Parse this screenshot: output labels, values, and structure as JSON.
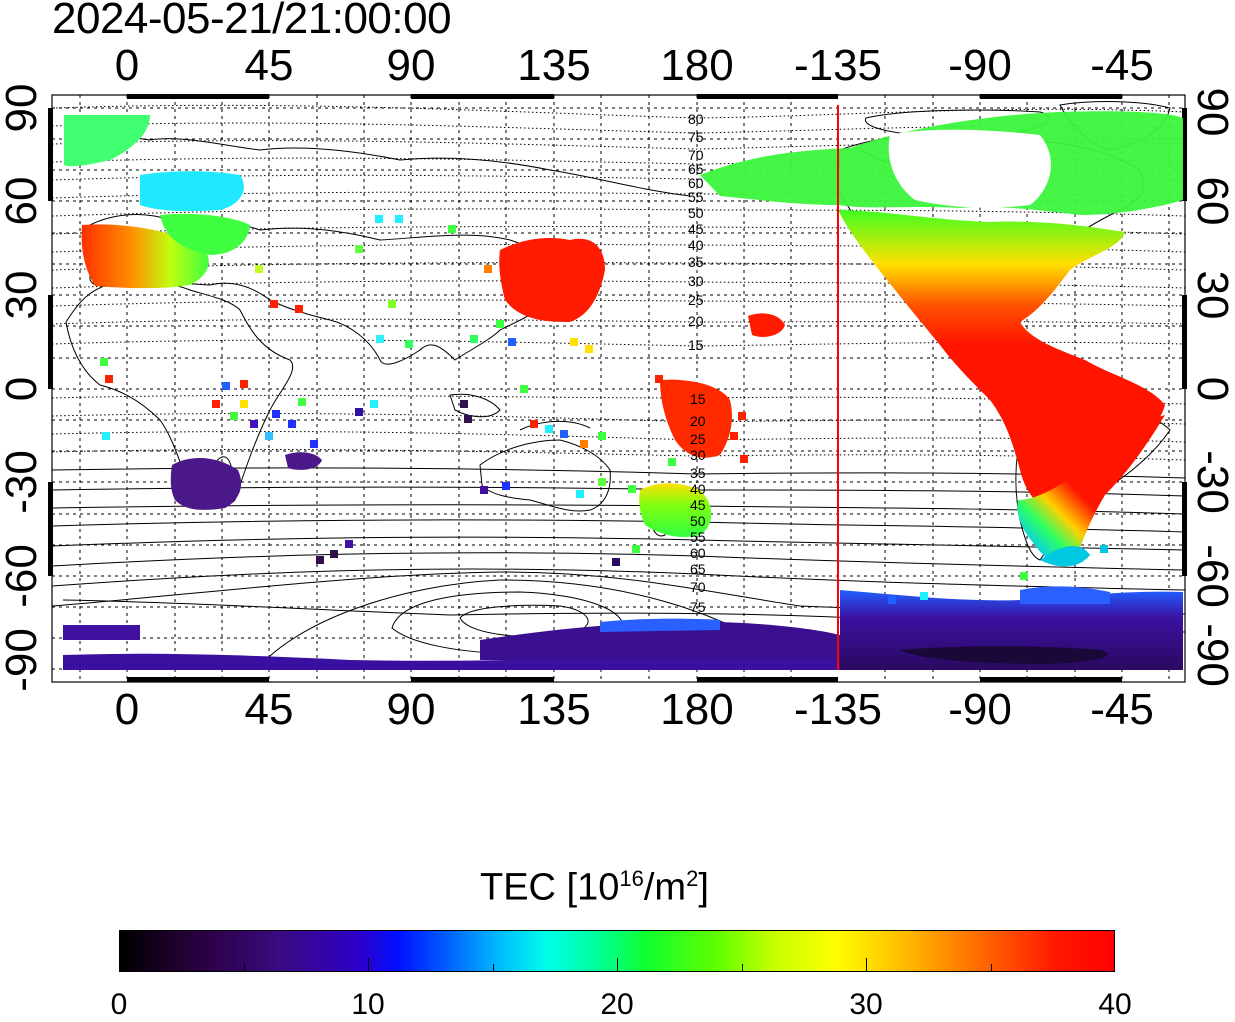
{
  "title": "2024-05-21/21:00:00",
  "x_axis_labels": [
    "0",
    "45",
    "90",
    "135",
    "180",
    "-135",
    "-90",
    "-45"
  ],
  "y_axis_labels_left": [
    "90",
    "60",
    "30",
    "0",
    "-30",
    "-60",
    "-90"
  ],
  "y_axis_labels_right": [
    "90",
    "60",
    "30",
    "0",
    "-30",
    "-60",
    "-90"
  ],
  "contour_labels_north": [
    "80",
    "75",
    "70",
    "65",
    "60",
    "55",
    "50",
    "45",
    "40",
    "35",
    "30",
    "25",
    "20",
    "15"
  ],
  "contour_labels_south": [
    "15",
    "20",
    "25",
    "30",
    "35",
    "40",
    "45",
    "50",
    "55",
    "60",
    "65",
    "70",
    "75"
  ],
  "colorbar": {
    "title_prefix": "TEC  [10",
    "title_sup1": "16",
    "title_mid": "/m",
    "title_sup2": "2",
    "title_suffix": "]",
    "tick_labels": [
      "0",
      "10",
      "20",
      "30",
      "40"
    ],
    "min": 0,
    "max": 40
  },
  "terminator_longitude": -135,
  "colors": {
    "terminator": "#ff0000",
    "high_tec": "#ff1400",
    "low_tec": "#3a0a80"
  }
}
